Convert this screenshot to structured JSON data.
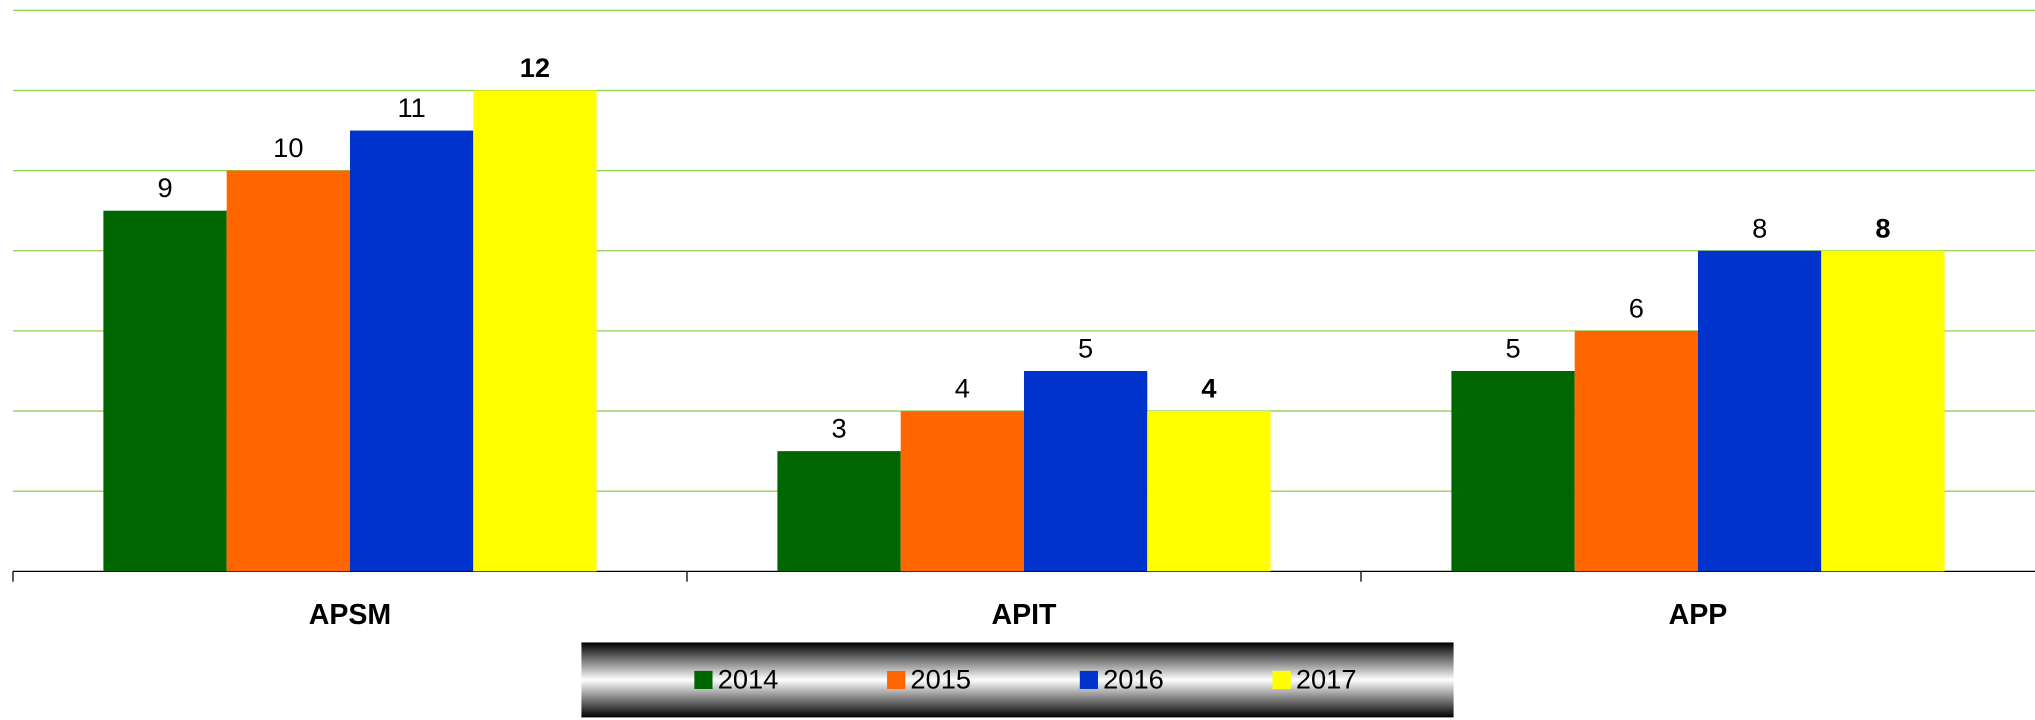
{
  "chart_data": {
    "type": "bar",
    "categories": [
      "APSM",
      "APIT",
      "APP"
    ],
    "series": [
      {
        "name": "2014",
        "color": "#006600",
        "values": [
          9,
          3,
          5
        ]
      },
      {
        "name": "2015",
        "color": "#ff6600",
        "values": [
          10,
          4,
          6
        ]
      },
      {
        "name": "2016",
        "color": "#0033cc",
        "values": [
          11,
          5,
          8
        ]
      },
      {
        "name": "2017",
        "color": "#ffff00",
        "values": [
          12,
          4,
          8
        ]
      }
    ],
    "ylim": [
      0,
      14
    ],
    "yticks": [
      0,
      2,
      4,
      6,
      8,
      10,
      12,
      14
    ],
    "grid": true,
    "legend": "bottom"
  }
}
